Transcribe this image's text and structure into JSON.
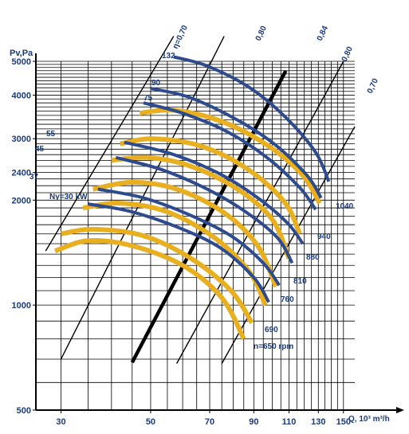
{
  "chart_data": {
    "type": "line",
    "x_scale": "log",
    "y_scale": "log",
    "xlabel": "Q, 10³ m³/h",
    "ylabel": "Pv,Pa",
    "xlim": [
      26,
      160
    ],
    "ylim": [
      500,
      5000
    ],
    "x_ticks": [
      30,
      50,
      70,
      90,
      110,
      130,
      150
    ],
    "y_ticks": [
      500,
      1000,
      2000,
      2400,
      3000,
      4000,
      5000
    ],
    "grid": true,
    "colors": {
      "speed_curve": "#E8B020",
      "power_curve": "#2E4B8E",
      "efficiency_line": "#000000",
      "grid": "#000000",
      "label_text": "#1A3A7A"
    },
    "efficiency_lines": [
      {
        "label": "η=0,70",
        "points": [
          [
            27.5,
            1430
          ],
          [
            57,
            5900
          ]
        ],
        "bold": false
      },
      {
        "label": "0,80",
        "points": [
          [
            30,
            700
          ],
          [
            76,
            5900
          ]
        ],
        "bold": false
      },
      {
        "label": "0,84",
        "points": [
          [
            45,
            685
          ],
          [
            108,
            4700
          ]
        ],
        "bold": true
      },
      {
        "label": "0,80",
        "points": [
          [
            58,
            680
          ],
          [
            150,
            5000
          ]
        ],
        "bold": false
      },
      {
        "label": "0,70",
        "points": [
          [
            75,
            680
          ],
          [
            160,
            3250
          ]
        ],
        "bold": false
      }
    ],
    "speed_curves": [
      {
        "label": "n=650 rpm",
        "points": [
          [
            29,
            1430
          ],
          [
            35,
            1530
          ],
          [
            45,
            1480
          ],
          [
            60,
            1300
          ],
          [
            75,
            1050
          ],
          [
            85,
            800
          ]
        ]
      },
      {
        "label": "690",
        "points": [
          [
            30,
            1600
          ],
          [
            36,
            1650
          ],
          [
            48,
            1580
          ],
          [
            63,
            1360
          ],
          [
            79,
            1100
          ],
          [
            89,
            890
          ]
        ]
      },
      {
        "label": "760",
        "points": [
          [
            34,
            1900
          ],
          [
            42,
            1960
          ],
          [
            55,
            1850
          ],
          [
            72,
            1560
          ],
          [
            88,
            1240
          ],
          [
            96,
            1000
          ]
        ]
      },
      {
        "label": "810",
        "points": [
          [
            36,
            2150
          ],
          [
            45,
            2250
          ],
          [
            58,
            2150
          ],
          [
            76,
            1840
          ],
          [
            92,
            1480
          ],
          [
            102,
            1130
          ]
        ]
      },
      {
        "label": "880",
        "points": [
          [
            40,
            2600
          ],
          [
            49,
            2650
          ],
          [
            63,
            2500
          ],
          [
            82,
            2150
          ],
          [
            100,
            1760
          ],
          [
            110,
            1360
          ]
        ]
      },
      {
        "label": "940",
        "points": [
          [
            42,
            2900
          ],
          [
            51,
            3000
          ],
          [
            67,
            2850
          ],
          [
            87,
            2450
          ],
          [
            107,
            1980
          ],
          [
            117,
            1600
          ]
        ]
      },
      {
        "label": "1040",
        "points": [
          [
            47,
            3550
          ],
          [
            57,
            3620
          ],
          [
            74,
            3380
          ],
          [
            96,
            2900
          ],
          [
            118,
            2380
          ],
          [
            131,
            1960
          ]
        ]
      }
    ],
    "power_curves": [
      {
        "label": "Ny=30 kW",
        "points": [
          [
            35,
            1950
          ],
          [
            45,
            1850
          ],
          [
            60,
            1650
          ],
          [
            75,
            1450
          ],
          [
            90,
            1200
          ],
          [
            98,
            1020
          ]
        ]
      },
      {
        "label": "37",
        "points": [
          [
            37,
            2150
          ],
          [
            48,
            2030
          ],
          [
            62,
            1820
          ],
          [
            79,
            1580
          ],
          [
            95,
            1320
          ],
          [
            104,
            1140
          ]
        ]
      },
      {
        "label": "45",
        "points": [
          [
            41,
            2650
          ],
          [
            53,
            2450
          ],
          [
            69,
            2150
          ],
          [
            86,
            1850
          ],
          [
            103,
            1560
          ],
          [
            112,
            1320
          ]
        ]
      },
      {
        "label": "55",
        "points": [
          [
            43,
            2930
          ],
          [
            56,
            2720
          ],
          [
            73,
            2400
          ],
          [
            91,
            2050
          ],
          [
            109,
            1720
          ],
          [
            119,
            1500
          ]
        ]
      },
      {
        "label": "75",
        "points": [
          [
            48,
            3800
          ],
          [
            60,
            3550
          ],
          [
            77,
            3150
          ],
          [
            97,
            2650
          ],
          [
            117,
            2170
          ],
          [
            128,
            1880
          ]
        ]
      },
      {
        "label": "90",
        "points": [
          [
            50,
            4180
          ],
          [
            62,
            3950
          ],
          [
            81,
            3420
          ],
          [
            101,
            2900
          ],
          [
            122,
            2350
          ],
          [
            132,
            2030
          ]
        ]
      },
      {
        "label": "132",
        "points": [
          [
            57,
            5150
          ],
          [
            69,
            4850
          ],
          [
            88,
            4200
          ],
          [
            108,
            3450
          ],
          [
            128,
            2740
          ],
          [
            138,
            2260
          ]
        ]
      }
    ]
  }
}
